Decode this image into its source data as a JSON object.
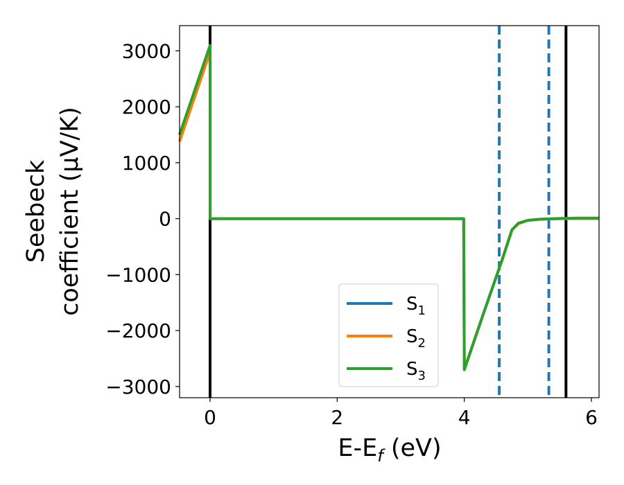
{
  "chart_data": {
    "type": "line",
    "xlabel": "E-E",
    "xlabel_sub": "f",
    "xlabel_unit": " (eV)",
    "ylabel_line1": "Seebeck",
    "ylabel_line2": "coefficient  (μV/K)",
    "xlim": [
      -0.48,
      6.12
    ],
    "ylim": [
      -3200,
      3450
    ],
    "xticks": [
      0,
      2,
      4,
      6
    ],
    "xtick_labels": [
      "0",
      "2",
      "4",
      "6"
    ],
    "yticks": [
      -3000,
      -2000,
      -1000,
      0,
      1000,
      2000,
      3000
    ],
    "ytick_labels": [
      "−3000",
      "−2000",
      "−1000",
      "0",
      "1000",
      "2000",
      "3000"
    ],
    "grid": false,
    "legend_placement": "lower-center",
    "series": [
      {
        "name": "S",
        "name_sub": "1",
        "color": "#1f77b4",
        "x": [
          -0.48,
          0.0,
          0.0,
          3.99,
          4.0,
          4.3,
          4.6,
          4.75,
          4.85,
          5.0,
          5.2,
          5.5,
          5.8,
          6.12
        ],
        "y": [
          1500,
          3080,
          0,
          0,
          -2700,
          -1700,
          -720,
          -200,
          -90,
          -30,
          -10,
          0,
          5,
          5
        ]
      },
      {
        "name": "S",
        "name_sub": "2",
        "color": "#ff7f0e",
        "x": [
          -0.48,
          0.0,
          0.0,
          3.99,
          4.0,
          4.3,
          4.6,
          4.75,
          4.85,
          5.0,
          5.2,
          5.5,
          5.8,
          6.12
        ],
        "y": [
          1380,
          2980,
          0,
          0,
          -2690,
          -1700,
          -720,
          -200,
          -90,
          -30,
          -10,
          0,
          0,
          0
        ]
      },
      {
        "name": "S",
        "name_sub": "3",
        "color": "#2ca02c",
        "x": [
          -0.48,
          0.0,
          0.0,
          3.99,
          4.0,
          4.3,
          4.6,
          4.75,
          4.85,
          5.0,
          5.2,
          5.5,
          5.8,
          6.12
        ],
        "y": [
          1500,
          3100,
          0,
          0,
          -2700,
          -1700,
          -720,
          -200,
          -80,
          -30,
          -10,
          5,
          10,
          10
        ]
      }
    ],
    "vlines": [
      {
        "x": 0.0,
        "color": "#000000",
        "style": "solid"
      },
      {
        "x": 4.55,
        "color": "#1f77b4",
        "style": "dashed"
      },
      {
        "x": 5.33,
        "color": "#1f77b4",
        "style": "dashed"
      },
      {
        "x": 5.6,
        "color": "#000000",
        "style": "solid"
      }
    ]
  }
}
